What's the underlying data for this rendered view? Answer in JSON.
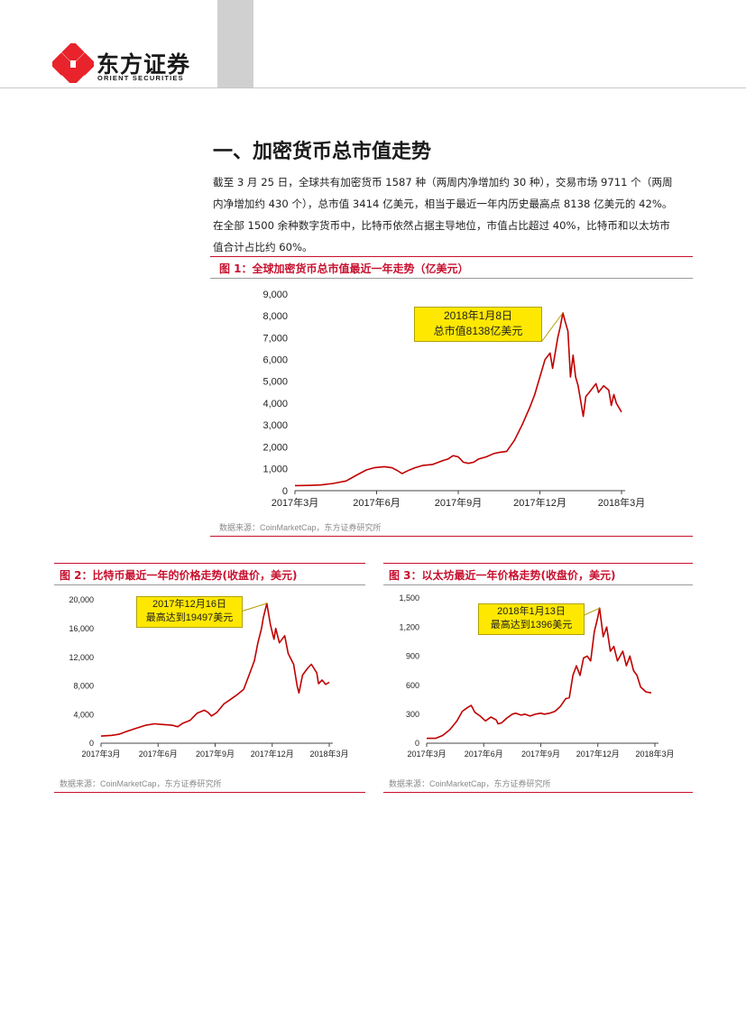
{
  "header": {
    "brand_cn": "东方证券",
    "brand_en": "ORIENT SECURITIES",
    "logo_color": "#e8232b"
  },
  "section": {
    "title": "一、加密货币总市值走势",
    "paragraph_lines": [
      "截至 3 月 25 日，全球共有加密货币 1587 种（两周内净增加约 30 种），交易市场 9711 个（两周",
      "内净增加约 430 个），总市值 3414 亿美元，相当于最近一年内历史最高点 8138 亿美元的 42%。",
      "在全部 1500 余种数字货币中，比特币依然占据主导地位，市值占比超过 40%，比特币和以太坊市",
      "值合计占比约 60%。"
    ]
  },
  "colors": {
    "accent": "#c8102e",
    "line": "#c00000",
    "callout": "#ffe800"
  },
  "figures": {
    "fig1": {
      "title": "图 1：全球加密货币总市值最近一年走势（亿美元）",
      "source": "数据来源：CoinMarketCap，东方证券研究所",
      "callout": [
        "2018年1月8日",
        "总市值8138亿美元"
      ]
    },
    "fig2": {
      "title": "图 2：比特币最近一年的价格走势(收盘价，美元)",
      "source": "数据来源：CoinMarketCap，东方证券研究所",
      "callout": [
        "2017年12月16日",
        "最高达到19497美元"
      ]
    },
    "fig3": {
      "title": "图 3：以太坊最近一年价格走势(收盘价，美元)",
      "source": "数据来源：CoinMarketCap，东方证券研究所",
      "callout": [
        "2018年1月13日",
        "最高达到1396美元"
      ]
    }
  },
  "chart_data": [
    {
      "id": "fig1",
      "type": "line",
      "title": "图 1：全球加密货币总市值最近一年走势（亿美元）",
      "xlabel": "",
      "ylabel": "",
      "ylim": [
        0,
        9000
      ],
      "yticks": [
        0,
        1000,
        2000,
        3000,
        4000,
        5000,
        6000,
        7000,
        8000,
        9000
      ],
      "ytick_labels": [
        "0",
        "1,000",
        "2,000",
        "3,000",
        "4,000",
        "5,000",
        "6,000",
        "7,000",
        "8,000",
        "9,000"
      ],
      "xticks": [
        "2017年3月",
        "2017年6月",
        "2017年9月",
        "2017年12月",
        "2018年3月"
      ],
      "x_range": [
        0,
        12.8
      ],
      "grid": false,
      "points": [
        [
          0,
          230
        ],
        [
          0.5,
          240
        ],
        [
          1,
          260
        ],
        [
          1.5,
          330
        ],
        [
          2,
          440
        ],
        [
          2.4,
          700
        ],
        [
          2.8,
          950
        ],
        [
          3.1,
          1050
        ],
        [
          3.5,
          1100
        ],
        [
          3.8,
          1050
        ],
        [
          4,
          930
        ],
        [
          4.2,
          780
        ],
        [
          4.4,
          900
        ],
        [
          4.7,
          1050
        ],
        [
          5,
          1150
        ],
        [
          5.4,
          1200
        ],
        [
          5.8,
          1380
        ],
        [
          6,
          1450
        ],
        [
          6.2,
          1600
        ],
        [
          6.4,
          1550
        ],
        [
          6.6,
          1300
        ],
        [
          6.8,
          1250
        ],
        [
          7,
          1300
        ],
        [
          7.2,
          1450
        ],
        [
          7.5,
          1550
        ],
        [
          7.8,
          1700
        ],
        [
          8,
          1750
        ],
        [
          8.3,
          1800
        ],
        [
          8.6,
          2300
        ],
        [
          8.9,
          3000
        ],
        [
          9.2,
          3800
        ],
        [
          9.4,
          4400
        ],
        [
          9.6,
          5200
        ],
        [
          9.8,
          6000
        ],
        [
          10,
          6300
        ],
        [
          10.1,
          5600
        ],
        [
          10.3,
          7000
        ],
        [
          10.4,
          7500
        ],
        [
          10.5,
          8138
        ],
        [
          10.6,
          7700
        ],
        [
          10.7,
          7300
        ],
        [
          10.8,
          5200
        ],
        [
          10.9,
          6200
        ],
        [
          11,
          5200
        ],
        [
          11.1,
          4800
        ],
        [
          11.3,
          3400
        ],
        [
          11.4,
          4300
        ],
        [
          11.6,
          4600
        ],
        [
          11.8,
          4900
        ],
        [
          11.9,
          4500
        ],
        [
          12.1,
          4800
        ],
        [
          12.3,
          4600
        ],
        [
          12.4,
          3900
        ],
        [
          12.5,
          4400
        ],
        [
          12.6,
          4000
        ],
        [
          12.8,
          3600
        ]
      ],
      "callout": [
        "2018年1月8日",
        "总市值8138亿美元"
      ]
    },
    {
      "id": "fig2",
      "type": "line",
      "title": "图 2：比特币最近一年的价格走势(收盘价，美元)",
      "xlabel": "",
      "ylabel": "",
      "ylim": [
        0,
        20000
      ],
      "yticks": [
        0,
        4000,
        8000,
        12000,
        16000,
        20000
      ],
      "ytick_labels": [
        "0",
        "4,000",
        "8,000",
        "12,000",
        "16,000",
        "20,000"
      ],
      "xticks": [
        "2017年3月",
        "2017年6月",
        "2017年9月",
        "2017年12月",
        "2018年3月"
      ],
      "x_range": [
        0,
        12.8
      ],
      "grid": false,
      "points": [
        [
          0,
          1000
        ],
        [
          0.6,
          1100
        ],
        [
          1,
          1250
        ],
        [
          1.5,
          1700
        ],
        [
          2,
          2100
        ],
        [
          2.5,
          2500
        ],
        [
          3,
          2700
        ],
        [
          3.5,
          2600
        ],
        [
          4,
          2500
        ],
        [
          4.3,
          2300
        ],
        [
          4.6,
          2800
        ],
        [
          5,
          3200
        ],
        [
          5.4,
          4200
        ],
        [
          5.8,
          4600
        ],
        [
          6,
          4300
        ],
        [
          6.2,
          3800
        ],
        [
          6.5,
          4300
        ],
        [
          6.9,
          5500
        ],
        [
          7.2,
          6000
        ],
        [
          7.6,
          6700
        ],
        [
          8,
          7500
        ],
        [
          8.3,
          9500
        ],
        [
          8.6,
          11500
        ],
        [
          8.8,
          14000
        ],
        [
          9,
          16000
        ],
        [
          9.1,
          17500
        ],
        [
          9.3,
          19497
        ],
        [
          9.5,
          16500
        ],
        [
          9.7,
          14500
        ],
        [
          9.8,
          16000
        ],
        [
          10,
          14000
        ],
        [
          10.3,
          15000
        ],
        [
          10.5,
          12500
        ],
        [
          10.8,
          11000
        ],
        [
          11,
          8000
        ],
        [
          11.1,
          7000
        ],
        [
          11.3,
          9500
        ],
        [
          11.6,
          10500
        ],
        [
          11.8,
          11000
        ],
        [
          12.1,
          9800
        ],
        [
          12.2,
          8300
        ],
        [
          12.4,
          8800
        ],
        [
          12.6,
          8200
        ],
        [
          12.8,
          8500
        ]
      ],
      "callout": [
        "2017年12月16日",
        "最高达到19497美元"
      ]
    },
    {
      "id": "fig3",
      "type": "line",
      "title": "图 3：以太坊最近一年价格走势(收盘价，美元)",
      "xlabel": "",
      "ylabel": "",
      "ylim": [
        0,
        1500
      ],
      "yticks": [
        0,
        300,
        600,
        900,
        1200,
        1500
      ],
      "ytick_labels": [
        "0",
        "300",
        "600",
        "900",
        "1,200",
        "1,500"
      ],
      "xticks": [
        "2017年3月",
        "2017年6月",
        "2017年9月",
        "2017年12月",
        "2018年3月"
      ],
      "x_range": [
        0,
        12.8
      ],
      "grid": false,
      "points": [
        [
          0,
          50
        ],
        [
          0.5,
          50
        ],
        [
          0.9,
          80
        ],
        [
          1.3,
          140
        ],
        [
          1.7,
          230
        ],
        [
          2,
          330
        ],
        [
          2.3,
          370
        ],
        [
          2.5,
          390
        ],
        [
          2.7,
          320
        ],
        [
          3,
          280
        ],
        [
          3.3,
          230
        ],
        [
          3.6,
          270
        ],
        [
          3.9,
          240
        ],
        [
          4,
          200
        ],
        [
          4.2,
          210
        ],
        [
          4.5,
          260
        ],
        [
          4.8,
          300
        ],
        [
          5,
          310
        ],
        [
          5.3,
          290
        ],
        [
          5.5,
          300
        ],
        [
          5.8,
          280
        ],
        [
          6.1,
          300
        ],
        [
          6.4,
          310
        ],
        [
          6.6,
          300
        ],
        [
          6.9,
          310
        ],
        [
          7.2,
          330
        ],
        [
          7.5,
          380
        ],
        [
          7.8,
          460
        ],
        [
          8,
          470
        ],
        [
          8.2,
          700
        ],
        [
          8.4,
          800
        ],
        [
          8.6,
          700
        ],
        [
          8.8,
          880
        ],
        [
          9,
          900
        ],
        [
          9.2,
          850
        ],
        [
          9.4,
          1150
        ],
        [
          9.6,
          1300
        ],
        [
          9.7,
          1396
        ],
        [
          9.9,
          1100
        ],
        [
          10.1,
          1200
        ],
        [
          10.3,
          950
        ],
        [
          10.5,
          1000
        ],
        [
          10.7,
          850
        ],
        [
          11,
          950
        ],
        [
          11.2,
          800
        ],
        [
          11.4,
          900
        ],
        [
          11.6,
          750
        ],
        [
          11.8,
          700
        ],
        [
          12,
          580
        ],
        [
          12.3,
          530
        ],
        [
          12.6,
          520
        ]
      ],
      "callout": [
        "2018年1月13日",
        "最高达到1396美元"
      ]
    }
  ]
}
